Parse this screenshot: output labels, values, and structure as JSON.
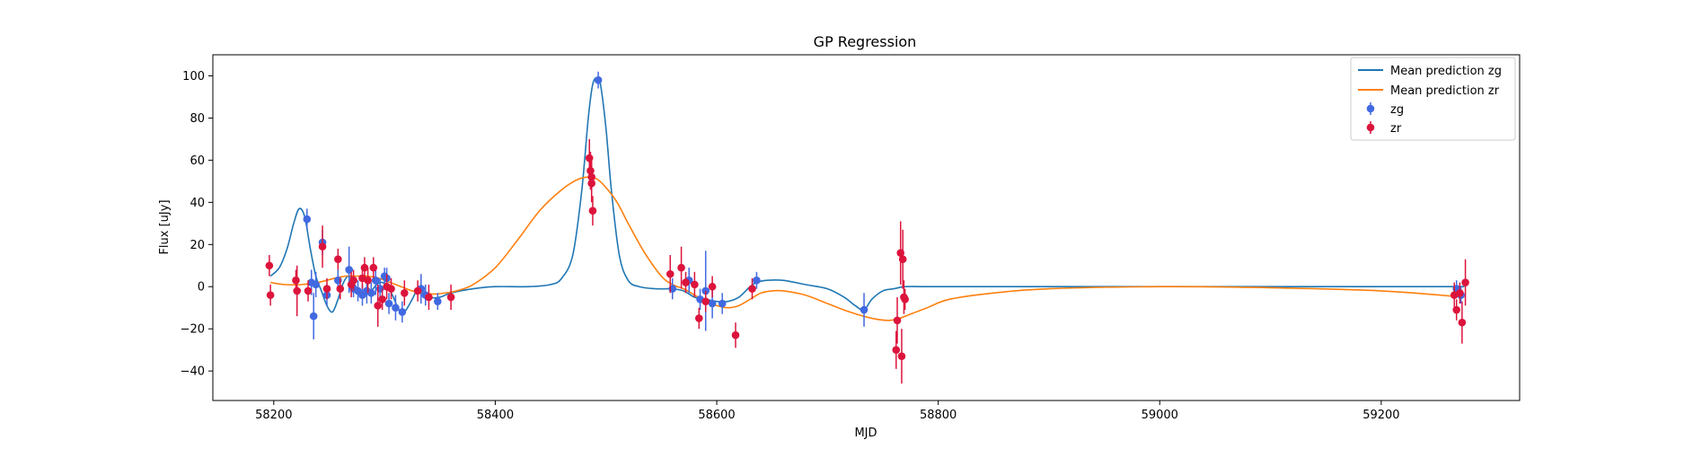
{
  "chart_data": {
    "type": "scatter",
    "title": "GP Regression",
    "xlabel": "MJD",
    "ylabel": "Flux [uJy]",
    "xlim": [
      58145,
      59325
    ],
    "ylim": [
      -54,
      110
    ],
    "xticks": [
      58200,
      58400,
      58600,
      58800,
      59000,
      59200
    ],
    "yticks": [
      -40,
      -20,
      0,
      20,
      40,
      60,
      80,
      100
    ],
    "grid": false,
    "legend_position": "top-right",
    "colors": {
      "mean_zg": "#1f77b4",
      "mean_zr": "#ff7f0e",
      "points_zg": "#4169e1",
      "points_zr": "#dc143c"
    },
    "legend": [
      "Mean prediction zg",
      "Mean prediction zr",
      "zg",
      "zr"
    ],
    "lines": [
      {
        "name": "Mean prediction zg",
        "x": [
          58197,
          58205,
          58212,
          58218,
          58223,
          58228,
          58233,
          58238,
          58243,
          58248,
          58253,
          58258,
          58263,
          58268,
          58273,
          58278,
          58283,
          58288,
          58293,
          58298,
          58303,
          58308,
          58313,
          58318,
          58325,
          58330,
          58335,
          58340,
          58350,
          58360,
          58380,
          58400,
          58430,
          58450,
          58460,
          58470,
          58478,
          58484,
          58488,
          58492,
          58495,
          58500,
          58505,
          58512,
          58520,
          58530,
          58545,
          58555,
          58560,
          58570,
          58580,
          58590,
          58600,
          58610,
          58620,
          58630,
          58636,
          58645,
          58660,
          58680,
          58700,
          58715,
          58725,
          58733,
          58740,
          58750,
          58760,
          58770,
          58790,
          58850,
          59000,
          59200,
          59275
        ],
        "y": [
          5,
          9,
          18,
          30,
          37,
          33,
          18,
          5,
          -2,
          -9,
          -12,
          -6,
          2,
          5,
          1,
          -3,
          -4,
          -2,
          1,
          2,
          0,
          -5,
          -11,
          -12,
          -6,
          -1,
          -2,
          -5,
          -5,
          -3,
          -1,
          0,
          0,
          1,
          4,
          15,
          45,
          80,
          96,
          99,
          96,
          75,
          45,
          15,
          3,
          0,
          -1,
          -1,
          -1,
          -2,
          -5,
          -6,
          -7,
          -7,
          -5,
          0,
          2,
          3,
          3,
          1,
          -1,
          -5,
          -9,
          -11,
          -6,
          -2,
          -1,
          0,
          0,
          0,
          0,
          0,
          0
        ]
      },
      {
        "name": "Mean prediction zr",
        "x": [
          58197,
          58210,
          58225,
          58240,
          58255,
          58265,
          58275,
          58285,
          58295,
          58305,
          58315,
          58325,
          58335,
          58345,
          58355,
          58365,
          58380,
          58400,
          58420,
          58440,
          58460,
          58475,
          58485,
          58492,
          58500,
          58510,
          58520,
          58535,
          58550,
          58560,
          58570,
          58580,
          58590,
          58600,
          58610,
          58620,
          58630,
          58640,
          58650,
          58660,
          58680,
          58700,
          58720,
          58740,
          58755,
          58765,
          58775,
          58790,
          58810,
          58850,
          58900,
          59000,
          59100,
          59200,
          59275
        ],
        "y": [
          2,
          1,
          1,
          2,
          4,
          5,
          5,
          5,
          4,
          2,
          0,
          -2,
          -3,
          -3.5,
          -3,
          -2,
          1,
          9,
          22,
          36,
          46,
          51,
          52,
          51,
          47,
          40,
          30,
          16,
          5,
          1,
          -1,
          -4,
          -7,
          -9,
          -10,
          -9,
          -6,
          -3,
          -2,
          -2,
          -4,
          -8,
          -12,
          -15,
          -16,
          -15,
          -13,
          -10,
          -6,
          -3,
          -1,
          0,
          -0.5,
          -2,
          -5
        ]
      }
    ],
    "series": [
      {
        "name": "zg",
        "points": [
          [
            58230,
            32,
            5
          ],
          [
            58234,
            2,
            6
          ],
          [
            58236,
            -14,
            11
          ],
          [
            58238,
            1,
            6
          ],
          [
            58244,
            21,
            6
          ],
          [
            58248,
            -4,
            5
          ],
          [
            58258,
            3,
            5
          ],
          [
            58268,
            8,
            11
          ],
          [
            58272,
            -1,
            4
          ],
          [
            58276,
            -2,
            5
          ],
          [
            58280,
            -4,
            5
          ],
          [
            58284,
            -2,
            6
          ],
          [
            58288,
            -3,
            5
          ],
          [
            58292,
            3,
            7
          ],
          [
            58296,
            -1,
            5
          ],
          [
            58300,
            5,
            4
          ],
          [
            58302,
            4,
            5
          ],
          [
            58304,
            -8,
            5
          ],
          [
            58310,
            -10,
            6
          ],
          [
            58316,
            -12,
            5
          ],
          [
            58333,
            -1,
            7
          ],
          [
            58337,
            -4,
            5
          ],
          [
            58348,
            -7,
            4
          ],
          [
            58493,
            98,
            4
          ],
          [
            58560,
            -1,
            5
          ],
          [
            58575,
            3,
            6
          ],
          [
            58585,
            -6,
            5
          ],
          [
            58590,
            -2,
            19
          ],
          [
            58596,
            -8,
            7
          ],
          [
            58605,
            -8,
            5
          ],
          [
            58636,
            3,
            4
          ],
          [
            58733,
            -11,
            8
          ],
          [
            59268,
            -1,
            4
          ],
          [
            59272,
            -4,
            4
          ]
        ]
      },
      {
        "name": "zr",
        "points": [
          [
            58196,
            10,
            5
          ],
          [
            58197,
            -4,
            5
          ],
          [
            58220,
            3,
            5
          ],
          [
            58221,
            -2,
            12
          ],
          [
            58231,
            -2,
            5
          ],
          [
            58244,
            19,
            10
          ],
          [
            58248,
            -1,
            5
          ],
          [
            58258,
            13,
            5
          ],
          [
            58260,
            -1,
            5
          ],
          [
            58270,
            1,
            6
          ],
          [
            58272,
            3,
            5
          ],
          [
            58280,
            4,
            5
          ],
          [
            58282,
            9,
            5
          ],
          [
            58285,
            3,
            6
          ],
          [
            58290,
            9,
            5
          ],
          [
            58294,
            -9,
            10
          ],
          [
            58298,
            -6,
            5
          ],
          [
            58302,
            0,
            6
          ],
          [
            58306,
            -1,
            5
          ],
          [
            58318,
            -3,
            6
          ],
          [
            58330,
            -2,
            5
          ],
          [
            58340,
            -5,
            6
          ],
          [
            58360,
            -5,
            6
          ],
          [
            58485,
            61,
            9
          ],
          [
            58486,
            55,
            9
          ],
          [
            58487,
            52,
            8
          ],
          [
            58487,
            49,
            9
          ],
          [
            58488,
            36,
            7
          ],
          [
            58558,
            6,
            9
          ],
          [
            58568,
            9,
            10
          ],
          [
            58572,
            2,
            5
          ],
          [
            58580,
            1,
            6
          ],
          [
            58584,
            -15,
            5
          ],
          [
            58590,
            -7,
            5
          ],
          [
            58596,
            0,
            5
          ],
          [
            58617,
            -23,
            6
          ],
          [
            58632,
            -1,
            5
          ],
          [
            58762,
            -30,
            9
          ],
          [
            58763,
            -16,
            11
          ],
          [
            58766,
            16,
            15
          ],
          [
            58767,
            -33,
            13
          ],
          [
            58768,
            13,
            14
          ],
          [
            58769,
            -5,
            8
          ],
          [
            58770,
            -6,
            5
          ],
          [
            59266,
            -4,
            6
          ],
          [
            59268,
            -11,
            5
          ],
          [
            59271,
            -3,
            5
          ],
          [
            59273,
            -17,
            10
          ],
          [
            59276,
            2,
            11
          ]
        ]
      }
    ]
  }
}
